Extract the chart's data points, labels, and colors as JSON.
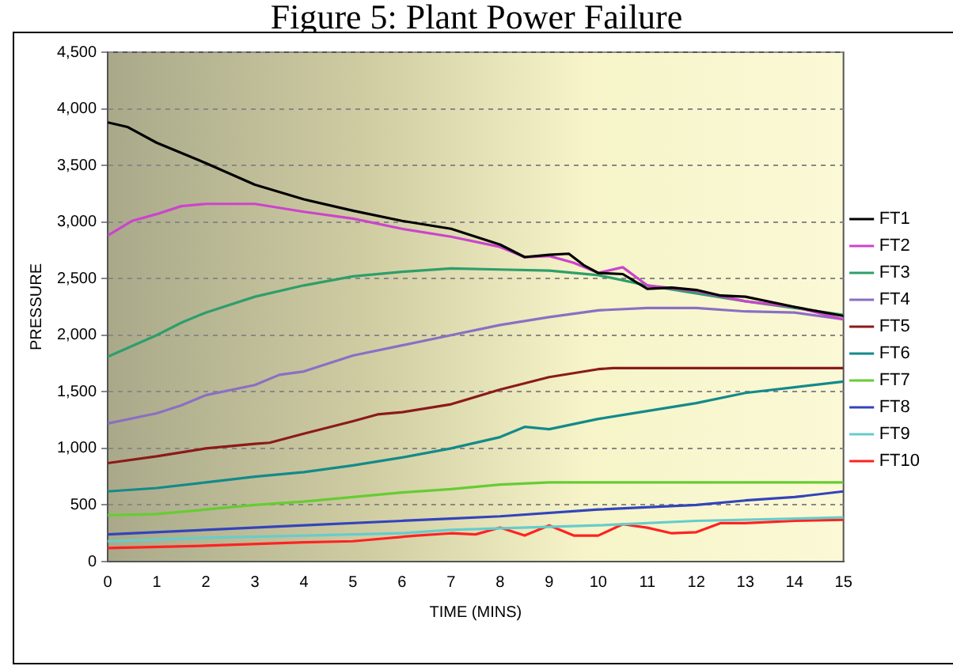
{
  "chart_data": {
    "type": "line",
    "title": "Figure 5: Plant Power Failure",
    "xlabel": "TIME (MINS)",
    "ylabel": "PRESSURE",
    "xlim": [
      0,
      15
    ],
    "xticks": [
      0,
      1,
      2,
      3,
      4,
      5,
      6,
      7,
      8,
      9,
      10,
      11,
      12,
      13,
      14,
      15
    ],
    "ylim": [
      0,
      4500
    ],
    "yticks": [
      0,
      500,
      {
        "value": 1000,
        "label": "1,000"
      },
      {
        "value": 1500,
        "label": "1,500"
      },
      {
        "value": 2000,
        "label": "2,000"
      },
      {
        "value": 2500,
        "label": "2,500"
      },
      {
        "value": 3000,
        "label": "3,000"
      },
      {
        "value": 3500,
        "label": "3,500"
      },
      {
        "value": 4000,
        "label": "4,000"
      },
      {
        "value": 4500,
        "label": "4,500"
      }
    ],
    "grid": "y",
    "legend": "right",
    "marker": "none",
    "line_style": "solid",
    "series": [
      {
        "name": "FT1",
        "color": "#000000",
        "x": [
          0,
          0.4,
          1,
          2,
          3,
          4,
          5,
          6,
          7,
          8,
          8.5,
          9,
          9.4,
          9.7,
          10,
          10.5,
          11,
          11.5,
          12,
          12.5,
          13,
          14,
          15
        ],
        "values": [
          3880,
          3840,
          3700,
          3520,
          3330,
          3200,
          3100,
          3010,
          2940,
          2800,
          2690,
          2710,
          2720,
          2620,
          2550,
          2540,
          2410,
          2420,
          2400,
          2350,
          2340,
          2250,
          2170
        ]
      },
      {
        "name": "FT2",
        "color": "#cc44cc",
        "x": [
          0,
          0.5,
          1,
          1.5,
          2,
          3,
          4,
          5,
          6,
          7,
          8,
          8.5,
          9,
          9.5,
          10,
          10.5,
          11,
          12,
          13,
          14,
          15
        ],
        "values": [
          2880,
          3010,
          3070,
          3140,
          3160,
          3160,
          3090,
          3030,
          2940,
          2870,
          2780,
          2690,
          2700,
          2640,
          2550,
          2600,
          2440,
          2390,
          2300,
          2250,
          2140
        ]
      },
      {
        "name": "FT3",
        "color": "#2e9e6b",
        "x": [
          0,
          1,
          1.5,
          2,
          3,
          4,
          5,
          6,
          7,
          8,
          9,
          10,
          11,
          12,
          13,
          14,
          15
        ],
        "values": [
          1810,
          2000,
          2110,
          2200,
          2340,
          2440,
          2520,
          2560,
          2590,
          2580,
          2570,
          2530,
          2440,
          2370,
          2300,
          2240,
          2180
        ]
      },
      {
        "name": "FT4",
        "color": "#8a6fc4",
        "x": [
          0,
          1,
          1.5,
          2,
          3,
          3.5,
          4,
          5,
          6,
          7,
          8,
          9,
          10,
          11,
          12,
          13,
          14,
          15
        ],
        "values": [
          1220,
          1310,
          1380,
          1470,
          1560,
          1650,
          1680,
          1820,
          1910,
          2000,
          2090,
          2160,
          2220,
          2240,
          2240,
          2210,
          2200,
          2140
        ]
      },
      {
        "name": "FT5",
        "color": "#8b1a1a",
        "x": [
          0,
          1,
          2,
          3,
          3.3,
          4,
          5,
          5.5,
          6,
          7,
          8,
          9,
          10,
          10.3,
          15
        ],
        "values": [
          870,
          930,
          1000,
          1040,
          1050,
          1130,
          1240,
          1300,
          1320,
          1390,
          1520,
          1630,
          1700,
          1710,
          1710
        ]
      },
      {
        "name": "FT6",
        "color": "#138a8a",
        "x": [
          0,
          1,
          2,
          3,
          4,
          5,
          6,
          7,
          8,
          8.5,
          9,
          10,
          11,
          12,
          13,
          14,
          15
        ],
        "values": [
          620,
          650,
          700,
          750,
          790,
          850,
          920,
          1000,
          1100,
          1190,
          1170,
          1260,
          1330,
          1400,
          1490,
          1540,
          1590
        ]
      },
      {
        "name": "FT7",
        "color": "#66cc33",
        "x": [
          0,
          1,
          2,
          3,
          4,
          5,
          6,
          7,
          8,
          9,
          15
        ],
        "values": [
          410,
          420,
          460,
          500,
          530,
          570,
          610,
          640,
          680,
          700,
          700
        ]
      },
      {
        "name": "FT8",
        "color": "#3344bb",
        "x": [
          0,
          2,
          4,
          6,
          7,
          8,
          10,
          12,
          13,
          14,
          15
        ],
        "values": [
          240,
          280,
          320,
          360,
          380,
          400,
          460,
          500,
          540,
          570,
          620
        ]
      },
      {
        "name": "FT9",
        "color": "#66cccc",
        "x": [
          0,
          2,
          4,
          6,
          7,
          10,
          12,
          15
        ],
        "values": [
          180,
          210,
          230,
          250,
          280,
          320,
          360,
          390
        ]
      },
      {
        "name": "FT10",
        "color": "#ff2222",
        "x": [
          0,
          2,
          4,
          5,
          6.3,
          7,
          7.5,
          8,
          8.5,
          9,
          9.5,
          10,
          10.5,
          11,
          11.5,
          12,
          12.5,
          13,
          14,
          15
        ],
        "values": [
          120,
          140,
          170,
          180,
          230,
          250,
          240,
          300,
          230,
          320,
          230,
          230,
          330,
          300,
          250,
          260,
          340,
          340,
          360,
          370
        ]
      }
    ]
  }
}
